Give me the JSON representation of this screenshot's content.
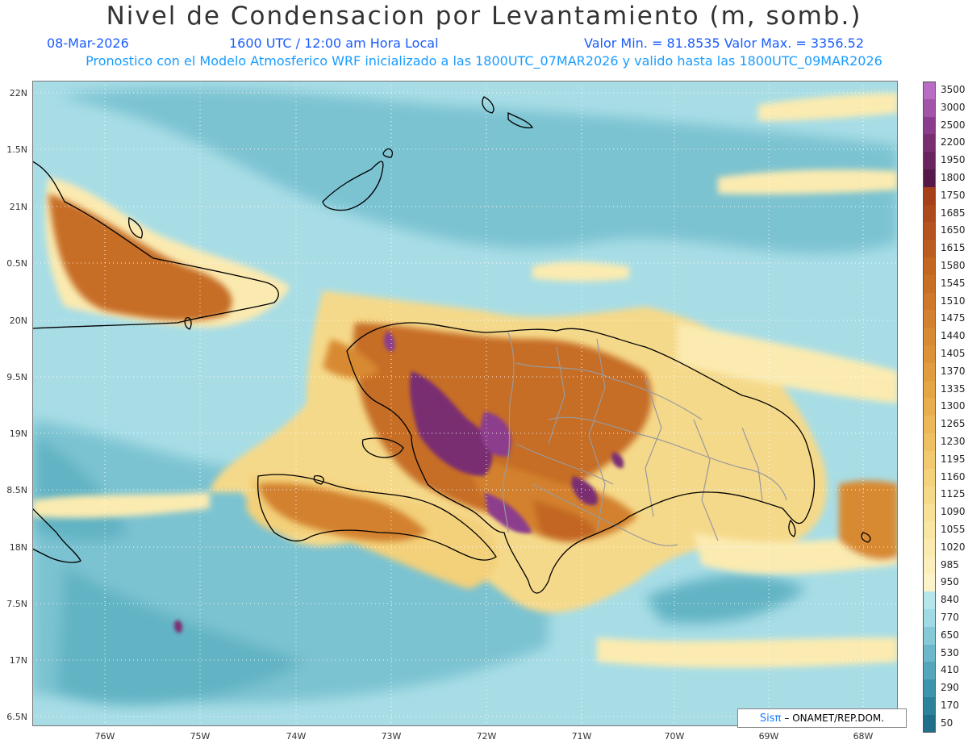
{
  "header": {
    "title": "Nivel de Condensacion por Levantamiento (m, somb.)",
    "date": "08-Mar-2026",
    "time": "1600 UTC / 12:00 am Hora Local",
    "minmax": "Valor Min. = 81.8535   Valor Max. = 3356.52",
    "model_info": "Pronostico con el Modelo Atmosferico WRF inicializado a las 1800UTC_07MAR2026 y valido hasta las  1800UTC_09MAR2026"
  },
  "axes": {
    "lat_labels": [
      "22N",
      "1.5N",
      "21N",
      "0.5N",
      "20N",
      "9.5N",
      "19N",
      "8.5N",
      "18N",
      "7.5N",
      "17N",
      "6.5N"
    ],
    "lon_labels": [
      "76W",
      "75W",
      "74W",
      "73W",
      "72W",
      "71W",
      "70W",
      "69W",
      "68W"
    ]
  },
  "colorbar": {
    "labels": [
      "3500",
      "3000",
      "2500",
      "2200",
      "1950",
      "1800",
      "1750",
      "1685",
      "1650",
      "1615",
      "1580",
      "1545",
      "1510",
      "1475",
      "1440",
      "1405",
      "1370",
      "1335",
      "1300",
      "1265",
      "1230",
      "1195",
      "1160",
      "1125",
      "1090",
      "1055",
      "1020",
      "985",
      "950",
      "840",
      "770",
      "650",
      "530",
      "410",
      "290",
      "170",
      "50"
    ],
    "colors": [
      "#b86cc4",
      "#a454a8",
      "#8c3c8c",
      "#7a2f72",
      "#6a2460",
      "#561848",
      "#a6401a",
      "#ad4a1c",
      "#b4531e",
      "#bb5c20",
      "#c26622",
      "#c86f26",
      "#ce782a",
      "#d3812e",
      "#d88a33",
      "#dc9338",
      "#e09c3e",
      "#e4a545",
      "#e8ae4d",
      "#ecb757",
      "#efc062",
      "#f2c96e",
      "#f4d17b",
      "#f6d988",
      "#f8e096",
      "#f9e6a3",
      "#fbebb0",
      "#fcefbc",
      "#fdf3c8",
      "#b4e6ec",
      "#a0dae4",
      "#86cad8",
      "#6cb8ca",
      "#53a6bc",
      "#3d94ad",
      "#2c829d",
      "#1f6f8a"
    ]
  },
  "credit": {
    "logo": "Sisπ",
    "text": "– ONAMET/REP.DOM."
  }
}
